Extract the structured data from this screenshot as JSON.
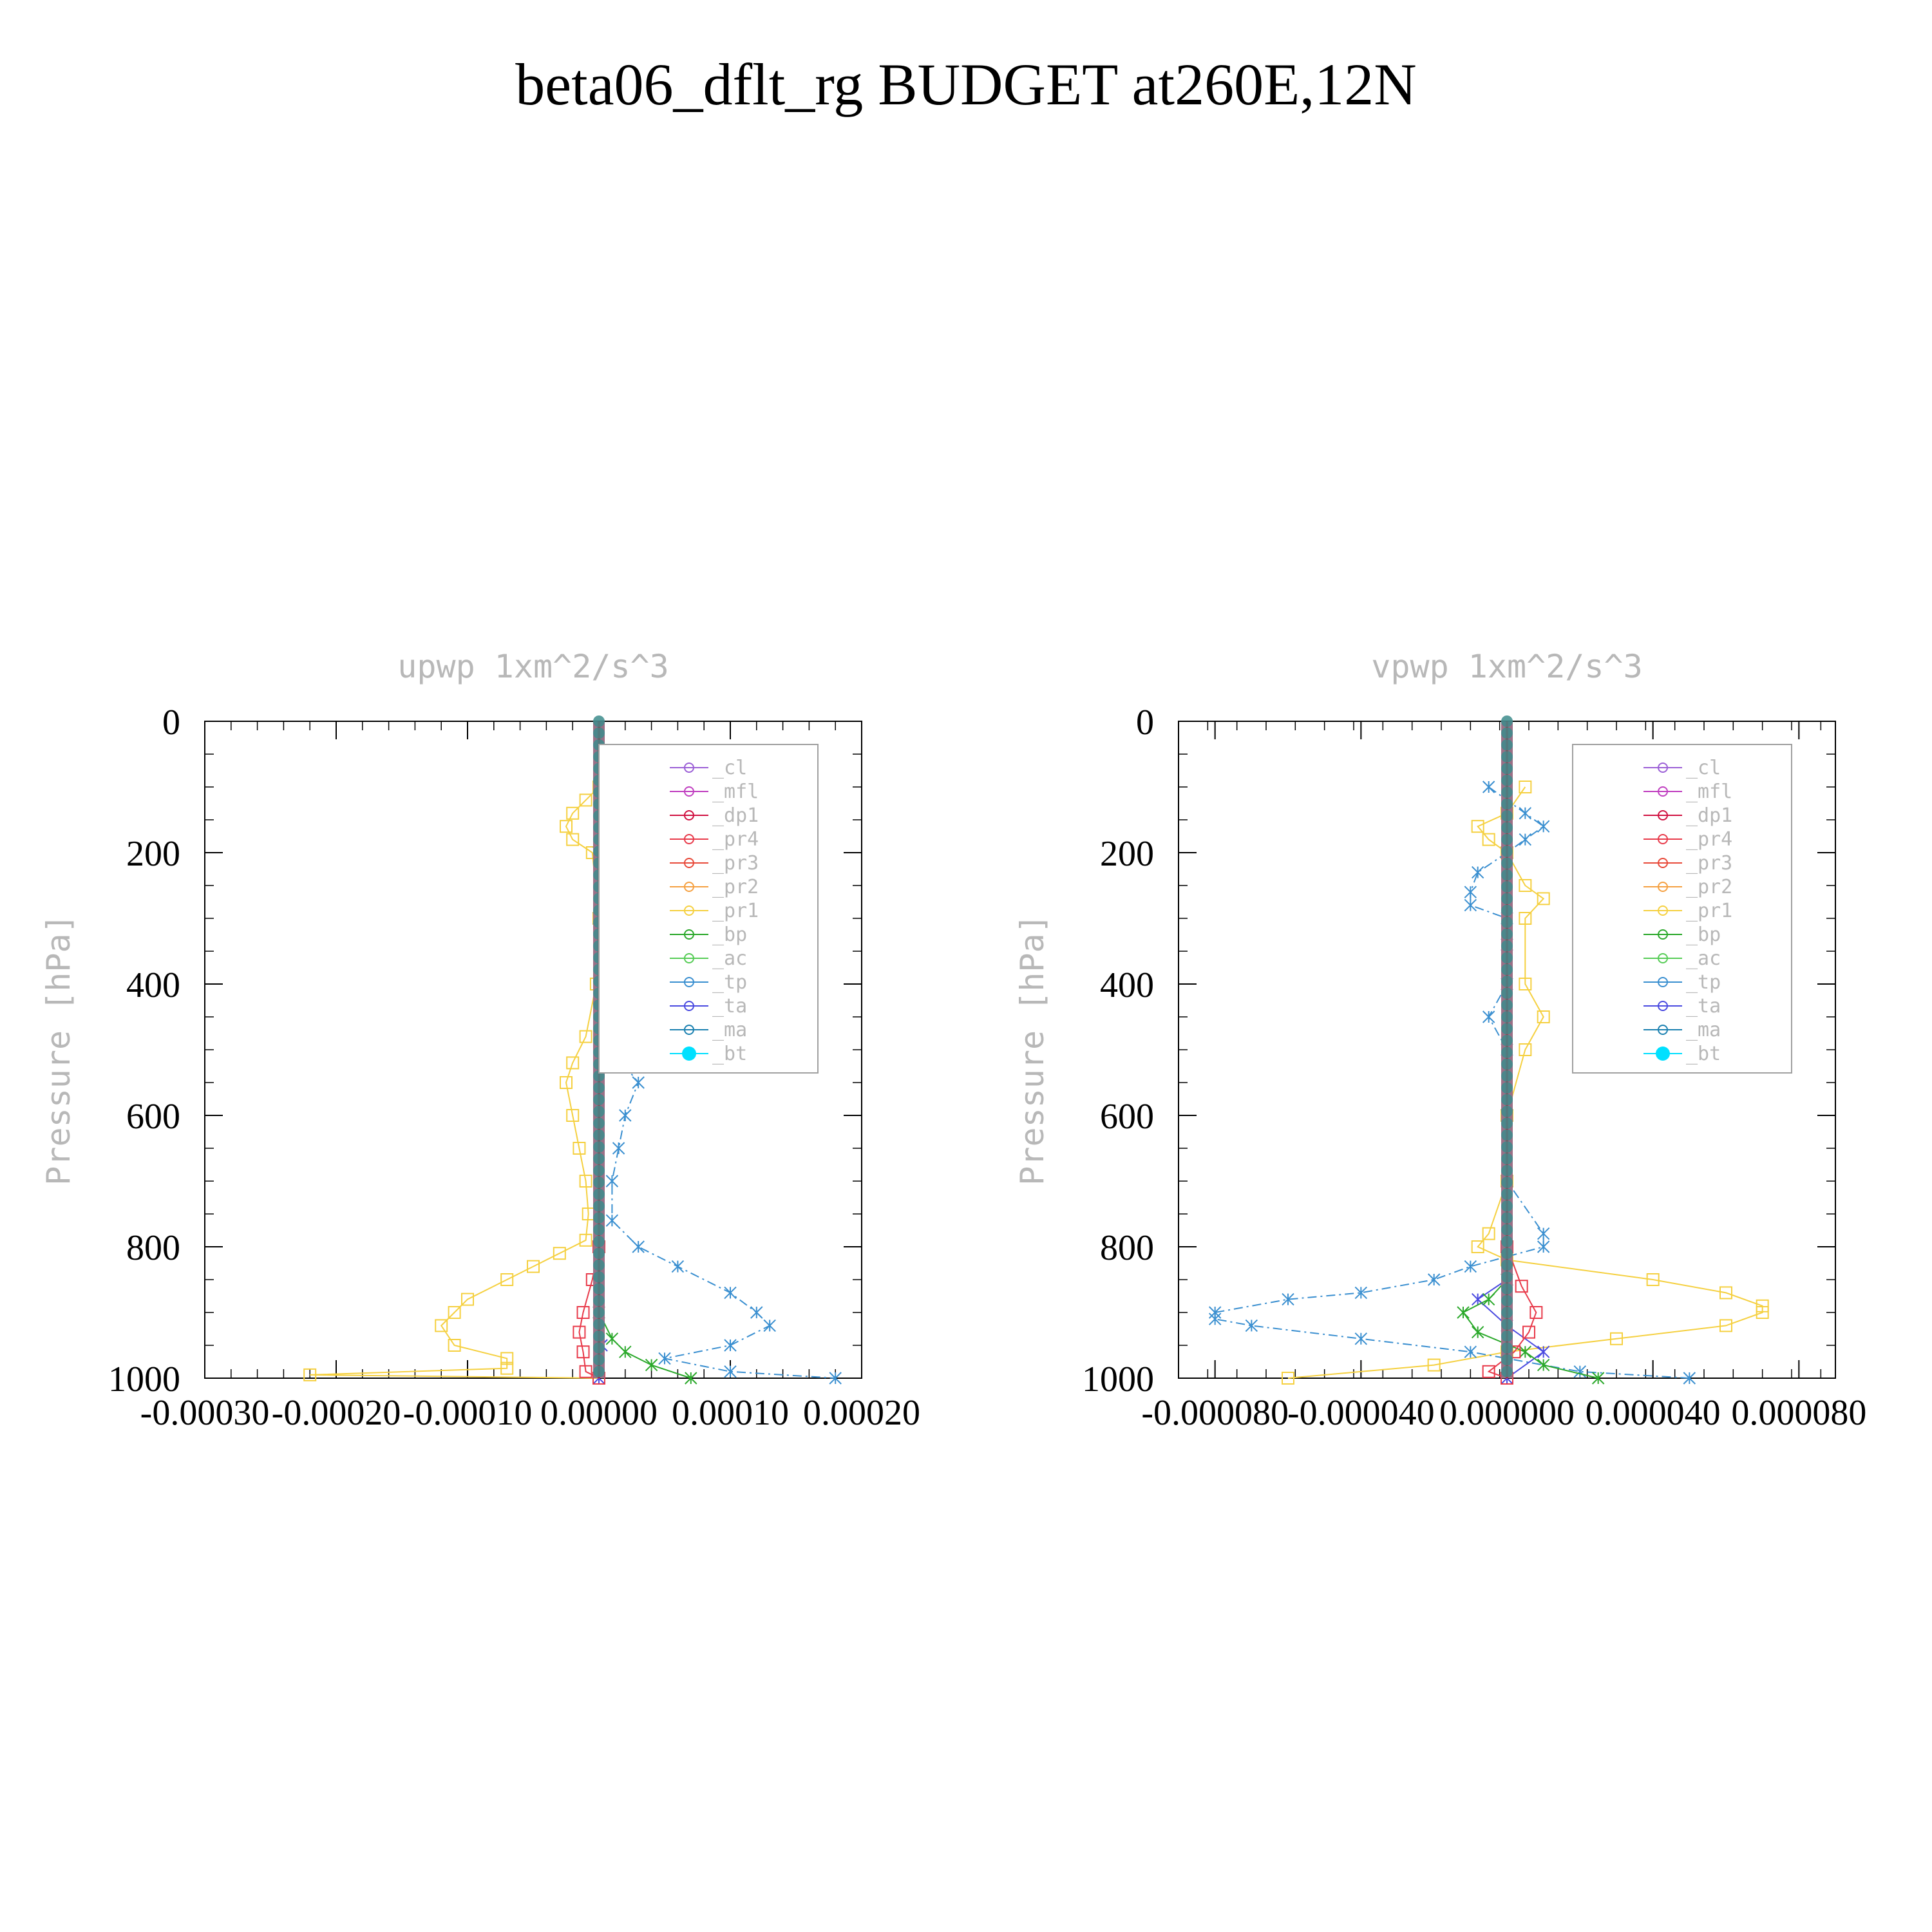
{
  "title": "beta06_dflt_rg  BUDGET at260E,12N",
  "legend": [
    "_cl",
    "_mfl",
    "_dp1",
    "_pr4",
    "_pr3",
    "_pr2",
    "_pr1",
    "_bp",
    "_ac",
    "_tp",
    "_ta",
    "_ma",
    "_bt"
  ],
  "colors": {
    "_cl": "#9b5fd6",
    "_mfl": "#c03fc0",
    "_dp1": "#d01040",
    "_pr4": "#e83a4a",
    "_pr3": "#e84a3a",
    "_pr2": "#f5a040",
    "_pr1": "#f5d040",
    "_bp": "#2aa82a",
    "_ac": "#55cc55",
    "_tp": "#3a8fd0",
    "_ta": "#4a4ae0",
    "_ma": "#1a80b0",
    "_bt": "#00e0ff",
    "axis_label": "#b8b8b8",
    "axis": "#000000"
  },
  "chart_data": [
    {
      "type": "line",
      "title": "upwp   1xm^2/s^3",
      "ylabel": "Pressure [hPa]",
      "xlim": [
        -0.0003,
        0.0002
      ],
      "ylim": [
        1000,
        0
      ],
      "x_ticks": [
        "-0.00030",
        "-0.00020",
        "-0.00010",
        "0.00000",
        "0.00010",
        "0.00020"
      ],
      "x_tick_values": [
        -0.0003,
        -0.0002,
        -0.0001,
        0,
        0.0001,
        0.0002
      ],
      "y_ticks": [
        "0",
        "200",
        "400",
        "600",
        "800",
        "1000"
      ],
      "y_tick_values": [
        0,
        200,
        400,
        600,
        800,
        1000
      ],
      "legend_position": "top-right",
      "series": [
        {
          "name": "_pr1",
          "y": [
            100,
            120,
            140,
            160,
            180,
            200,
            300,
            400,
            480,
            520,
            550,
            600,
            650,
            700,
            750,
            790,
            810,
            830,
            850,
            880,
            900,
            920,
            950,
            970,
            985,
            995,
            1000
          ],
          "x": [
            0,
            -1e-05,
            -2e-05,
            -2.5e-05,
            -2e-05,
            -5e-06,
            0,
            -2e-06,
            -1e-05,
            -2e-05,
            -2.5e-05,
            -2e-05,
            -1.5e-05,
            -1e-05,
            -8e-06,
            -1e-05,
            -3e-05,
            -5e-05,
            -7e-05,
            -0.0001,
            -0.00011,
            -0.00012,
            -0.00011,
            -7e-05,
            -7e-05,
            -0.00022,
            0
          ]
        },
        {
          "name": "_tp",
          "y": [
            100,
            130,
            160,
            180,
            200,
            300,
            450,
            500,
            550,
            600,
            650,
            700,
            760,
            800,
            830,
            870,
            900,
            920,
            950,
            970,
            990,
            1000
          ],
          "x": [
            1e-05,
            2e-05,
            2.5e-05,
            1.5e-05,
            5e-06,
            0,
            2e-06,
            1e-05,
            3e-05,
            2e-05,
            1.5e-05,
            1e-05,
            1e-05,
            3e-05,
            6e-05,
            0.0001,
            0.00012,
            0.00013,
            0.0001,
            5e-05,
            0.0001,
            0.00018
          ]
        },
        {
          "name": "_pr4",
          "y": [
            800,
            850,
            900,
            930,
            960,
            990,
            1000
          ],
          "x": [
            0,
            -5e-06,
            -1.2e-05,
            -1.5e-05,
            -1.2e-05,
            -1e-05,
            0
          ]
        },
        {
          "name": "_bp",
          "y": [
            140,
            160,
            200,
            900,
            940,
            960,
            980,
            1000
          ],
          "x": [
            1e-05,
            5e-06,
            0,
            0,
            1e-05,
            2e-05,
            4e-05,
            7e-05
          ]
        },
        {
          "name": "_ta",
          "y": [
            900,
            950,
            1000
          ],
          "x": [
            0,
            2e-06,
            0
          ]
        },
        {
          "name": "_bt",
          "y": [
            0,
            1000
          ],
          "x": [
            0,
            0
          ]
        }
      ]
    },
    {
      "type": "line",
      "title": "vpwp   1xm^2/s^3",
      "ylabel": "Pressure [hPa]",
      "xlim": [
        -9e-05,
        9e-05
      ],
      "ylim": [
        1000,
        0
      ],
      "x_ticks": [
        "-0.000080",
        "-0.000040",
        "0.000000",
        "0.000040",
        "0.000080"
      ],
      "x_tick_values": [
        -8e-05,
        -4e-05,
        0,
        4e-05,
        8e-05
      ],
      "y_ticks": [
        "0",
        "200",
        "400",
        "600",
        "800",
        "1000"
      ],
      "y_tick_values": [
        0,
        200,
        400,
        600,
        800,
        1000
      ],
      "legend_position": "top-right",
      "series": [
        {
          "name": "_pr1",
          "y": [
            100,
            140,
            160,
            180,
            200,
            250,
            270,
            300,
            400,
            450,
            500,
            600,
            700,
            780,
            800,
            820,
            850,
            870,
            890,
            900,
            920,
            940,
            960,
            980,
            1000
          ],
          "x": [
            5e-06,
            0,
            -8e-06,
            -5e-06,
            0,
            5e-06,
            1e-05,
            5e-06,
            5e-06,
            1e-05,
            5e-06,
            0,
            0,
            -5e-06,
            -8e-06,
            0,
            4e-05,
            6e-05,
            7e-05,
            7e-05,
            6e-05,
            3e-05,
            0,
            -2e-05,
            -6e-05
          ]
        },
        {
          "name": "_tp",
          "y": [
            100,
            140,
            160,
            180,
            200,
            230,
            260,
            280,
            300,
            340,
            400,
            450,
            500,
            600,
            700,
            780,
            800,
            830,
            850,
            870,
            880,
            900,
            910,
            920,
            940,
            960,
            990,
            1000
          ],
          "x": [
            -5e-06,
            5e-06,
            1e-05,
            5e-06,
            0,
            -8e-06,
            -1e-05,
            -1e-05,
            0,
            0,
            0,
            -5e-06,
            0,
            0,
            0,
            1e-05,
            1e-05,
            -1e-05,
            -2e-05,
            -4e-05,
            -6e-05,
            -8e-05,
            -8e-05,
            -7e-05,
            -4e-05,
            -1e-05,
            2e-05,
            5e-05
          ]
        },
        {
          "name": "_pr4",
          "y": [
            800,
            860,
            900,
            930,
            960,
            990,
            1000
          ],
          "x": [
            0,
            4e-06,
            8e-06,
            6e-06,
            2e-06,
            -5e-06,
            0
          ]
        },
        {
          "name": "_bp",
          "y": [
            850,
            880,
            900,
            930,
            960,
            980,
            1000
          ],
          "x": [
            0,
            -5e-06,
            -1.2e-05,
            -8e-06,
            5e-06,
            1e-05,
            2.5e-05
          ]
        },
        {
          "name": "_ta",
          "y": [
            850,
            880,
            920,
            960,
            1000
          ],
          "x": [
            0,
            -8e-06,
            0,
            1e-05,
            0
          ]
        },
        {
          "name": "_bt",
          "y": [
            0,
            1000
          ],
          "x": [
            0,
            0
          ]
        }
      ]
    }
  ]
}
